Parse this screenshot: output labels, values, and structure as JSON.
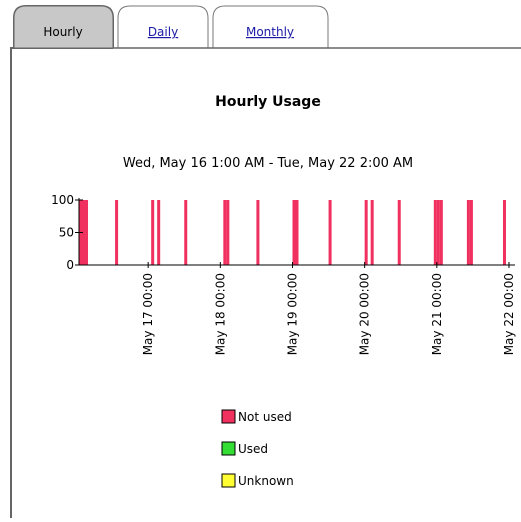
{
  "tabs": [
    "Hourly",
    "Daily",
    "Monthly"
  ],
  "chart_data": {
    "type": "bar",
    "title": "Hourly Usage",
    "subtitle": "Wed, May 16 1:00 AM - Tue, May 22 2:00 AM",
    "x": [
      "May 16 01:00",
      "May 16 02:00",
      "May 16 03:00",
      "May 16 13:00",
      "May 17 01:00",
      "May 17 03:00",
      "May 17 12:00",
      "May 18 01:00",
      "May 18 02:00",
      "May 18 12:00",
      "May 19 00:00",
      "May 19 01:00",
      "May 19 12:00",
      "May 20 00:00",
      "May 20 02:00",
      "May 20 11:00",
      "May 20 23:00",
      "May 21 00:00",
      "May 21 01:00",
      "May 21 10:00",
      "May 21 11:00",
      "May 21 22:00"
    ],
    "series": [
      {
        "name": "Not used",
        "color": "#f0305f",
        "values": [
          100,
          100,
          100,
          100,
          100,
          100,
          100,
          100,
          100,
          100,
          100,
          100,
          100,
          100,
          100,
          100,
          100,
          100,
          100,
          100,
          100,
          100
        ]
      }
    ],
    "legend": [
      {
        "name": "Not used",
        "color": "#f0305f"
      },
      {
        "name": "Used",
        "color": "#33dd33"
      },
      {
        "name": "Unknown",
        "color": "#ffff33"
      }
    ],
    "xlim": [
      "May 16 01:00",
      "May 22 02:00"
    ],
    "xticks": [
      "May 17 00:00",
      "May 18 00:00",
      "May 19 00:00",
      "May 20 00:00",
      "May 21 00:00",
      "May 22 00:00"
    ],
    "ylim": [
      0,
      100
    ],
    "yticks": [
      0,
      50,
      100
    ]
  }
}
